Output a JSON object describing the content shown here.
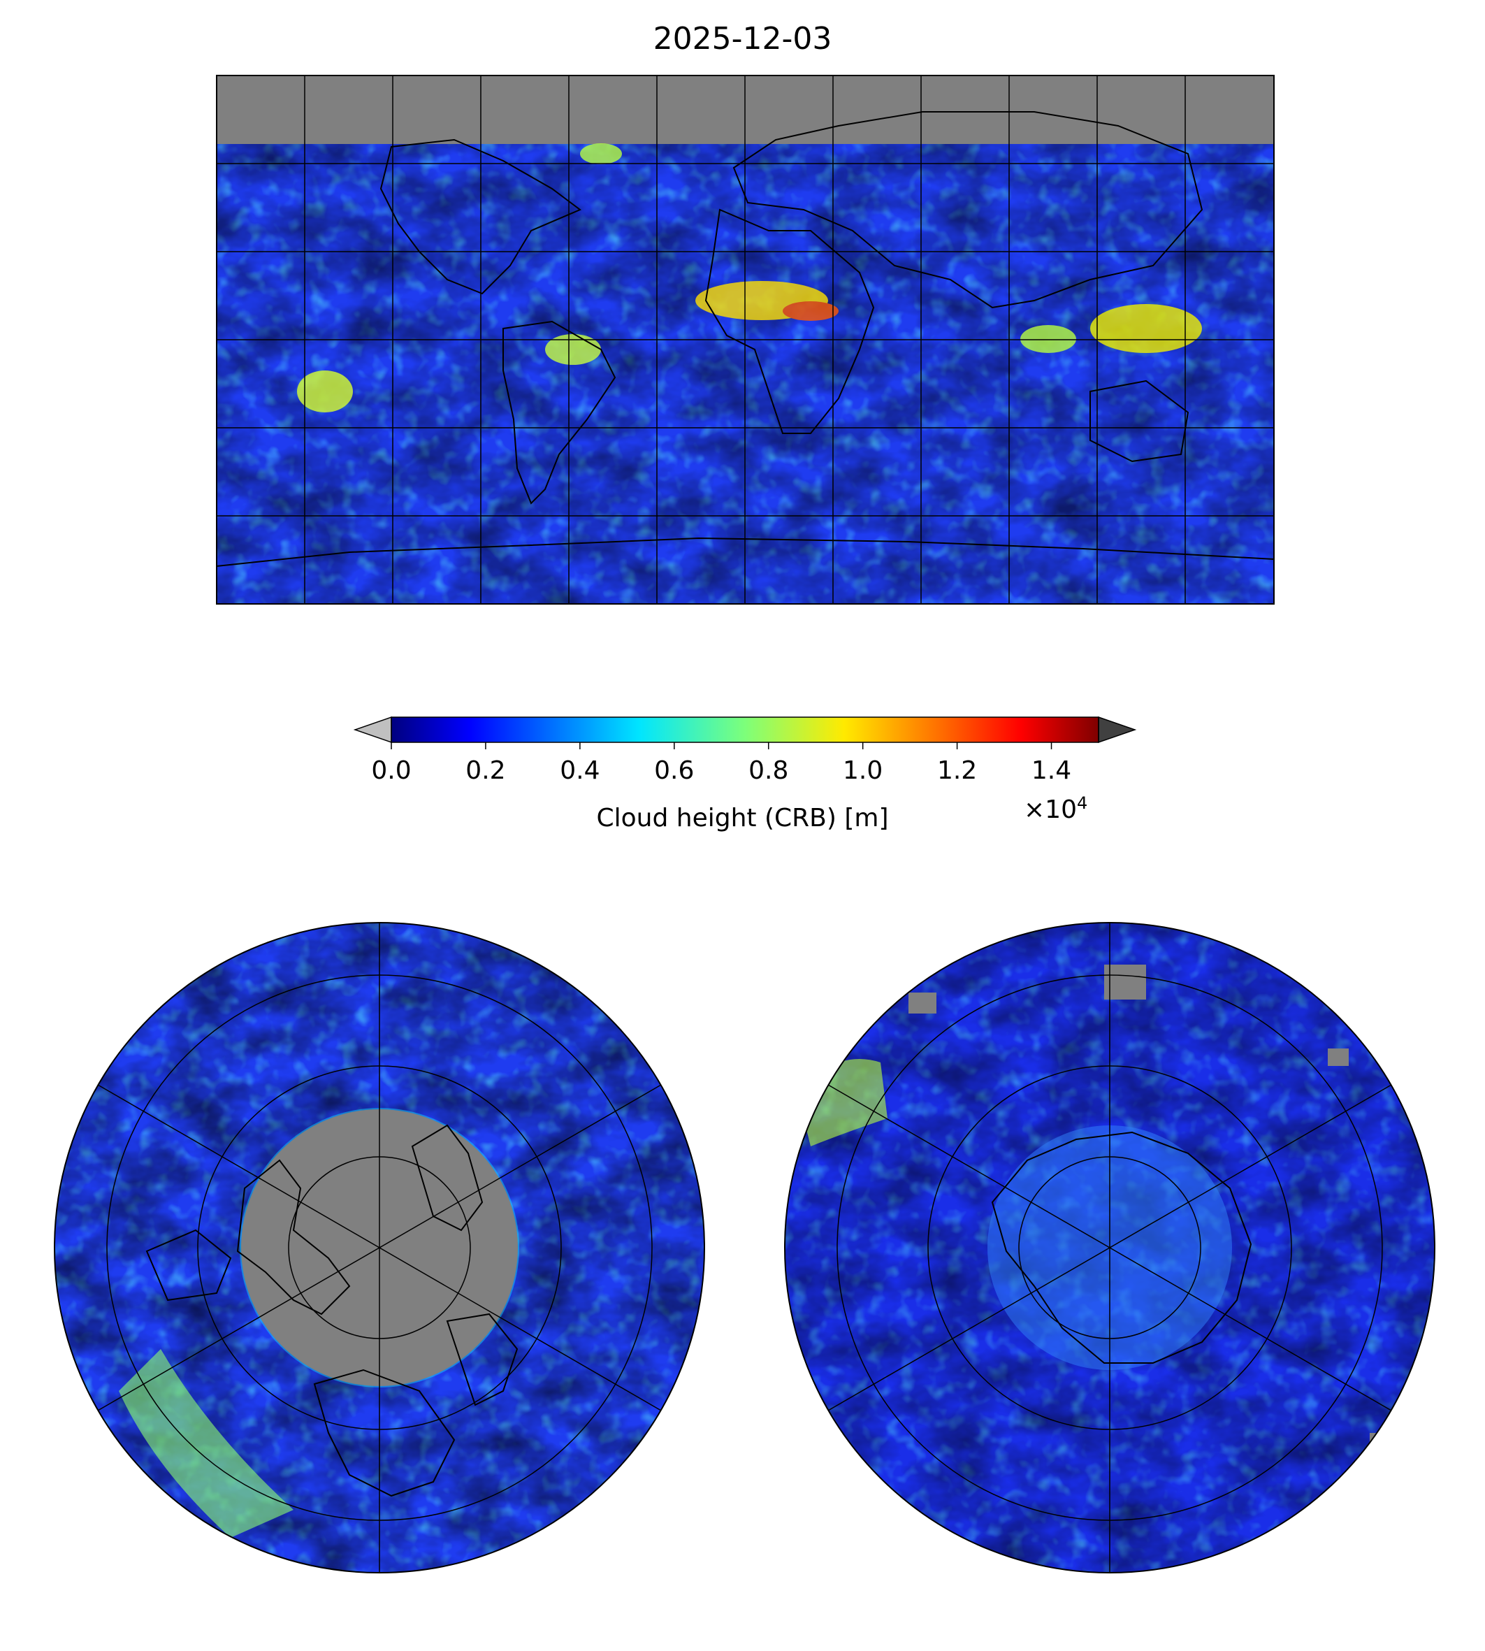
{
  "title": "2025-12-03",
  "colorbar": {
    "label": "Cloud height (CRB) [m]",
    "multiplier_base": "×10",
    "multiplier_exp": "4",
    "ticks": [
      "0.0",
      "0.2",
      "0.4",
      "0.6",
      "0.8",
      "1.0",
      "1.2",
      "1.4"
    ],
    "range": [
      0.0,
      1.5
    ],
    "extend_min_color": "#c0c0c0",
    "extend_max_color": "#404040",
    "colormap": "jet"
  },
  "colors": {
    "no_data": "#808080",
    "frame": "#000000",
    "coastline": "#000000",
    "graticule": "#000000"
  },
  "panels": [
    {
      "name": "global-map",
      "projection": "plate-carree"
    },
    {
      "name": "north-polar-map",
      "projection": "north-polar-stereographic"
    },
    {
      "name": "south-polar-map",
      "projection": "south-polar-stereographic"
    }
  ]
}
